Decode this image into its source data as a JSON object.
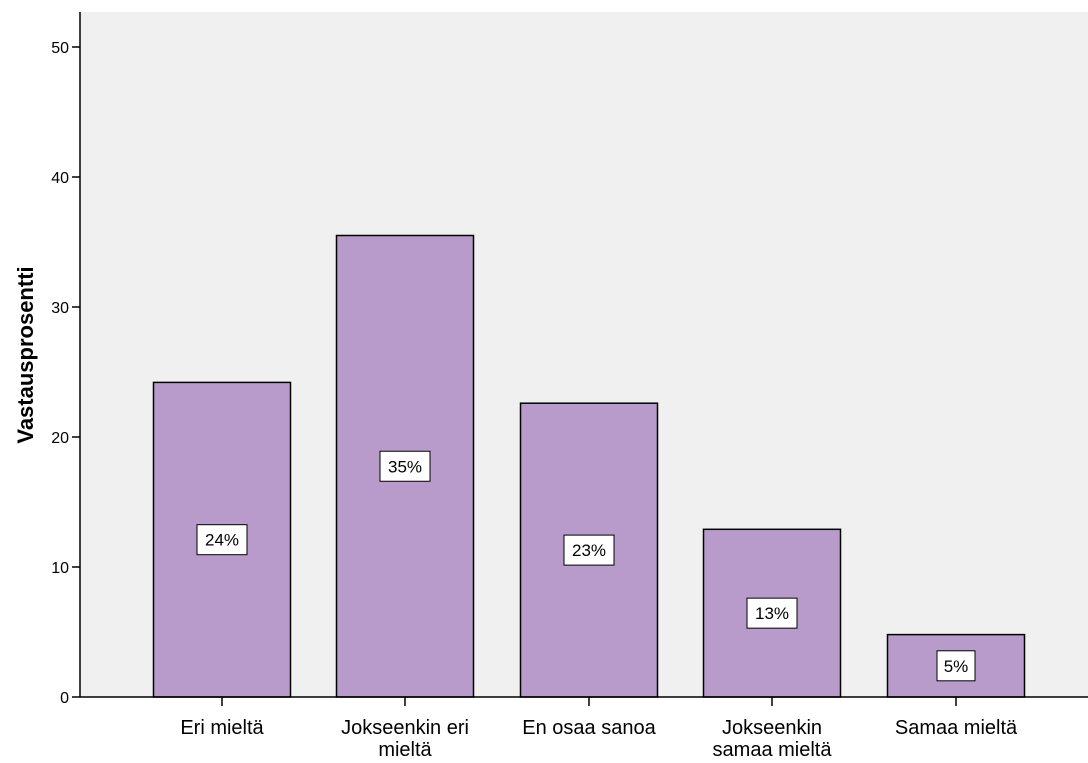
{
  "chart_data": {
    "type": "bar",
    "categories": [
      [
        "Eri mieltä"
      ],
      [
        "Jokseenkin eri",
        "mieltä"
      ],
      [
        "En osaa sanoa"
      ],
      [
        "Jokseenkin",
        "samaa mieltä"
      ],
      [
        "Samaa mieltä"
      ]
    ],
    "values": [
      24.2,
      35.5,
      22.6,
      12.9,
      4.8
    ],
    "data_labels": [
      "24%",
      "35%",
      "23%",
      "13%",
      "5%"
    ],
    "title": "",
    "xlabel": "",
    "ylabel": "Vastausprosentti",
    "ylim": [
      0,
      50
    ],
    "yticks": [
      0,
      10,
      20,
      30,
      40,
      50
    ],
    "ytick_labels": [
      "0",
      "10",
      "20",
      "30",
      "40",
      "50"
    ],
    "grid": false,
    "legend": "none",
    "colors": {
      "bar_fill": "#b89bcb",
      "bar_stroke": "#000000",
      "plot_background": "#f0f0f0",
      "label_box_fill": "#ffffff"
    }
  }
}
